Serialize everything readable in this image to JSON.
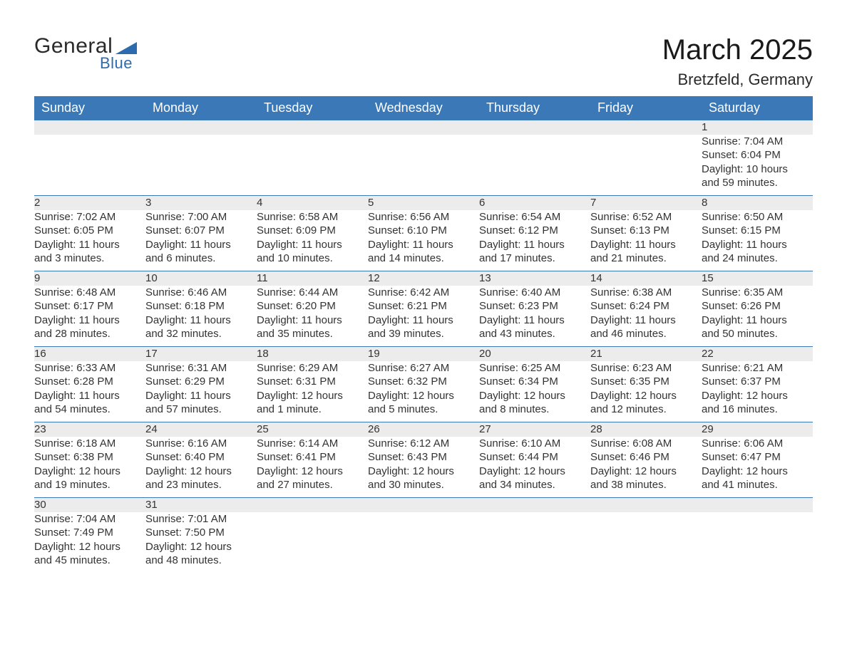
{
  "logo": {
    "word1": "General",
    "word2": "Blue",
    "text_color": "#2a2a2a",
    "accent_color": "#2e6bae"
  },
  "title": "March 2025",
  "location": "Bretzfeld, Germany",
  "colors": {
    "header_bg": "#3a78b8",
    "header_text": "#ffffff",
    "daynum_bg": "#ececec",
    "daynum_border": "#3a78b8",
    "body_text": "#333333",
    "page_bg": "#ffffff"
  },
  "typography": {
    "title_fontsize": 40,
    "location_fontsize": 22,
    "header_fontsize": 18,
    "daynum_fontsize": 17,
    "cell_fontsize": 15
  },
  "layout": {
    "columns": 7,
    "rows": 6,
    "start_weekday": "Sunday"
  },
  "weekdays": [
    "Sunday",
    "Monday",
    "Tuesday",
    "Wednesday",
    "Thursday",
    "Friday",
    "Saturday"
  ],
  "weeks": [
    [
      null,
      null,
      null,
      null,
      null,
      null,
      {
        "n": "1",
        "sunrise": "Sunrise: 7:04 AM",
        "sunset": "Sunset: 6:04 PM",
        "dl1": "Daylight: 10 hours",
        "dl2": "and 59 minutes."
      }
    ],
    [
      {
        "n": "2",
        "sunrise": "Sunrise: 7:02 AM",
        "sunset": "Sunset: 6:05 PM",
        "dl1": "Daylight: 11 hours",
        "dl2": "and 3 minutes."
      },
      {
        "n": "3",
        "sunrise": "Sunrise: 7:00 AM",
        "sunset": "Sunset: 6:07 PM",
        "dl1": "Daylight: 11 hours",
        "dl2": "and 6 minutes."
      },
      {
        "n": "4",
        "sunrise": "Sunrise: 6:58 AM",
        "sunset": "Sunset: 6:09 PM",
        "dl1": "Daylight: 11 hours",
        "dl2": "and 10 minutes."
      },
      {
        "n": "5",
        "sunrise": "Sunrise: 6:56 AM",
        "sunset": "Sunset: 6:10 PM",
        "dl1": "Daylight: 11 hours",
        "dl2": "and 14 minutes."
      },
      {
        "n": "6",
        "sunrise": "Sunrise: 6:54 AM",
        "sunset": "Sunset: 6:12 PM",
        "dl1": "Daylight: 11 hours",
        "dl2": "and 17 minutes."
      },
      {
        "n": "7",
        "sunrise": "Sunrise: 6:52 AM",
        "sunset": "Sunset: 6:13 PM",
        "dl1": "Daylight: 11 hours",
        "dl2": "and 21 minutes."
      },
      {
        "n": "8",
        "sunrise": "Sunrise: 6:50 AM",
        "sunset": "Sunset: 6:15 PM",
        "dl1": "Daylight: 11 hours",
        "dl2": "and 24 minutes."
      }
    ],
    [
      {
        "n": "9",
        "sunrise": "Sunrise: 6:48 AM",
        "sunset": "Sunset: 6:17 PM",
        "dl1": "Daylight: 11 hours",
        "dl2": "and 28 minutes."
      },
      {
        "n": "10",
        "sunrise": "Sunrise: 6:46 AM",
        "sunset": "Sunset: 6:18 PM",
        "dl1": "Daylight: 11 hours",
        "dl2": "and 32 minutes."
      },
      {
        "n": "11",
        "sunrise": "Sunrise: 6:44 AM",
        "sunset": "Sunset: 6:20 PM",
        "dl1": "Daylight: 11 hours",
        "dl2": "and 35 minutes."
      },
      {
        "n": "12",
        "sunrise": "Sunrise: 6:42 AM",
        "sunset": "Sunset: 6:21 PM",
        "dl1": "Daylight: 11 hours",
        "dl2": "and 39 minutes."
      },
      {
        "n": "13",
        "sunrise": "Sunrise: 6:40 AM",
        "sunset": "Sunset: 6:23 PM",
        "dl1": "Daylight: 11 hours",
        "dl2": "and 43 minutes."
      },
      {
        "n": "14",
        "sunrise": "Sunrise: 6:38 AM",
        "sunset": "Sunset: 6:24 PM",
        "dl1": "Daylight: 11 hours",
        "dl2": "and 46 minutes."
      },
      {
        "n": "15",
        "sunrise": "Sunrise: 6:35 AM",
        "sunset": "Sunset: 6:26 PM",
        "dl1": "Daylight: 11 hours",
        "dl2": "and 50 minutes."
      }
    ],
    [
      {
        "n": "16",
        "sunrise": "Sunrise: 6:33 AM",
        "sunset": "Sunset: 6:28 PM",
        "dl1": "Daylight: 11 hours",
        "dl2": "and 54 minutes."
      },
      {
        "n": "17",
        "sunrise": "Sunrise: 6:31 AM",
        "sunset": "Sunset: 6:29 PM",
        "dl1": "Daylight: 11 hours",
        "dl2": "and 57 minutes."
      },
      {
        "n": "18",
        "sunrise": "Sunrise: 6:29 AM",
        "sunset": "Sunset: 6:31 PM",
        "dl1": "Daylight: 12 hours",
        "dl2": "and 1 minute."
      },
      {
        "n": "19",
        "sunrise": "Sunrise: 6:27 AM",
        "sunset": "Sunset: 6:32 PM",
        "dl1": "Daylight: 12 hours",
        "dl2": "and 5 minutes."
      },
      {
        "n": "20",
        "sunrise": "Sunrise: 6:25 AM",
        "sunset": "Sunset: 6:34 PM",
        "dl1": "Daylight: 12 hours",
        "dl2": "and 8 minutes."
      },
      {
        "n": "21",
        "sunrise": "Sunrise: 6:23 AM",
        "sunset": "Sunset: 6:35 PM",
        "dl1": "Daylight: 12 hours",
        "dl2": "and 12 minutes."
      },
      {
        "n": "22",
        "sunrise": "Sunrise: 6:21 AM",
        "sunset": "Sunset: 6:37 PM",
        "dl1": "Daylight: 12 hours",
        "dl2": "and 16 minutes."
      }
    ],
    [
      {
        "n": "23",
        "sunrise": "Sunrise: 6:18 AM",
        "sunset": "Sunset: 6:38 PM",
        "dl1": "Daylight: 12 hours",
        "dl2": "and 19 minutes."
      },
      {
        "n": "24",
        "sunrise": "Sunrise: 6:16 AM",
        "sunset": "Sunset: 6:40 PM",
        "dl1": "Daylight: 12 hours",
        "dl2": "and 23 minutes."
      },
      {
        "n": "25",
        "sunrise": "Sunrise: 6:14 AM",
        "sunset": "Sunset: 6:41 PM",
        "dl1": "Daylight: 12 hours",
        "dl2": "and 27 minutes."
      },
      {
        "n": "26",
        "sunrise": "Sunrise: 6:12 AM",
        "sunset": "Sunset: 6:43 PM",
        "dl1": "Daylight: 12 hours",
        "dl2": "and 30 minutes."
      },
      {
        "n": "27",
        "sunrise": "Sunrise: 6:10 AM",
        "sunset": "Sunset: 6:44 PM",
        "dl1": "Daylight: 12 hours",
        "dl2": "and 34 minutes."
      },
      {
        "n": "28",
        "sunrise": "Sunrise: 6:08 AM",
        "sunset": "Sunset: 6:46 PM",
        "dl1": "Daylight: 12 hours",
        "dl2": "and 38 minutes."
      },
      {
        "n": "29",
        "sunrise": "Sunrise: 6:06 AM",
        "sunset": "Sunset: 6:47 PM",
        "dl1": "Daylight: 12 hours",
        "dl2": "and 41 minutes."
      }
    ],
    [
      {
        "n": "30",
        "sunrise": "Sunrise: 7:04 AM",
        "sunset": "Sunset: 7:49 PM",
        "dl1": "Daylight: 12 hours",
        "dl2": "and 45 minutes."
      },
      {
        "n": "31",
        "sunrise": "Sunrise: 7:01 AM",
        "sunset": "Sunset: 7:50 PM",
        "dl1": "Daylight: 12 hours",
        "dl2": "and 48 minutes."
      },
      null,
      null,
      null,
      null,
      null
    ]
  ]
}
